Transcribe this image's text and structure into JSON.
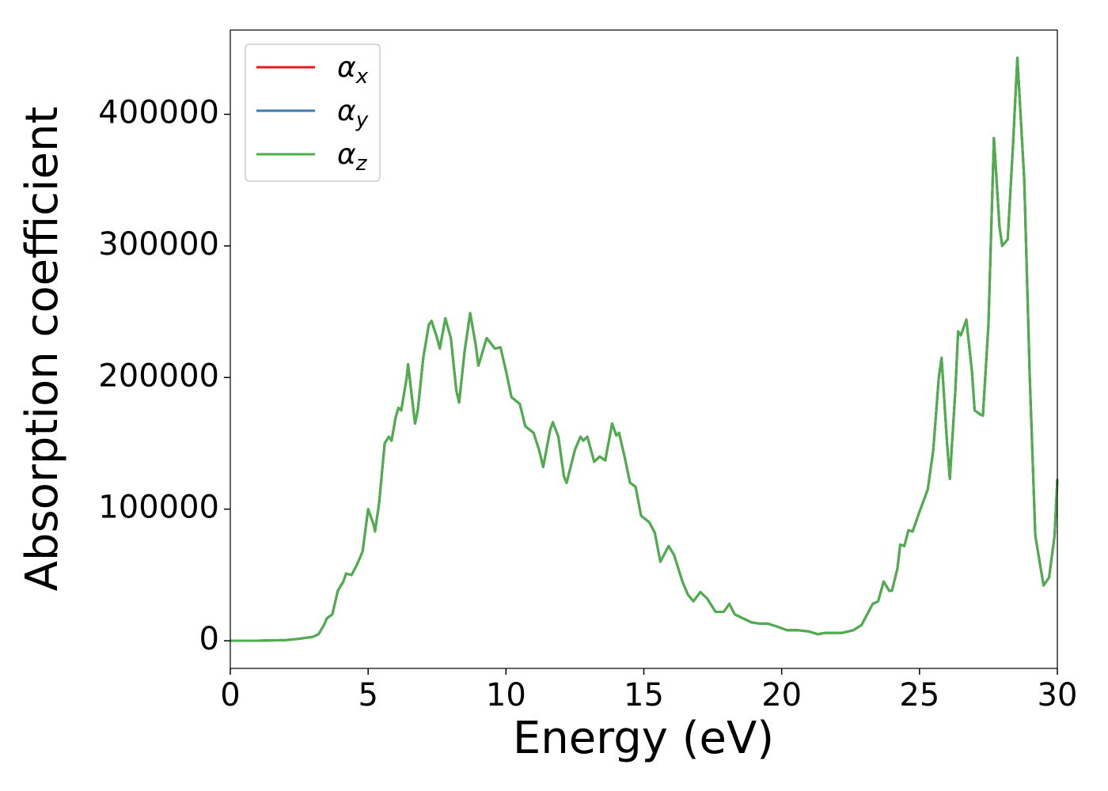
{
  "chart_data": {
    "type": "line",
    "xlabel": "Energy (eV)",
    "ylabel": "Absorption coefficient",
    "xlim": [
      0,
      30
    ],
    "xticks": [
      0,
      5,
      10,
      15,
      20,
      25,
      30
    ],
    "ylim": [
      -21000,
      464000
    ],
    "yticks": [
      0,
      100000,
      200000,
      300000,
      400000
    ],
    "grid": false,
    "legend": "upper left",
    "x": [
      0,
      1,
      2,
      2.5,
      3,
      3.2,
      3.4,
      3.5,
      3.7,
      3.9,
      4.1,
      4.2,
      4.4,
      4.6,
      4.8,
      5.0,
      5.2,
      5.25,
      5.4,
      5.6,
      5.75,
      5.85,
      6.0,
      6.1,
      6.2,
      6.4,
      6.45,
      6.7,
      6.8,
      7.0,
      7.2,
      7.3,
      7.5,
      7.6,
      7.8,
      8.0,
      8.2,
      8.3,
      8.5,
      8.7,
      8.9,
      9.0,
      9.3,
      9.6,
      9.8,
      10.0,
      10.2,
      10.5,
      10.7,
      11.0,
      11.2,
      11.35,
      11.6,
      11.7,
      11.9,
      12.1,
      12.2,
      12.5,
      12.7,
      12.8,
      12.95,
      13.2,
      13.4,
      13.6,
      13.85,
      14.0,
      14.1,
      14.3,
      14.5,
      14.7,
      14.9,
      15.2,
      15.4,
      15.6,
      15.9,
      16.1,
      16.4,
      16.6,
      16.8,
      17.05,
      17.3,
      17.6,
      17.9,
      18.1,
      18.3,
      18.6,
      18.9,
      19.2,
      19.5,
      19.8,
      20.2,
      20.6,
      21.0,
      21.3,
      21.6,
      22.2,
      22.6,
      22.9,
      23.1,
      23.3,
      23.5,
      23.7,
      23.9,
      24.0,
      24.2,
      24.3,
      24.45,
      24.6,
      24.75,
      25.0,
      25.3,
      25.5,
      25.7,
      25.8,
      26.0,
      26.1,
      26.3,
      26.4,
      26.5,
      26.7,
      26.9,
      27.0,
      27.2,
      27.3,
      27.5,
      27.7,
      27.9,
      28.0,
      28.2,
      28.4,
      28.55,
      28.8,
      29.0,
      29.2,
      29.5,
      29.7,
      29.9,
      30.0
    ],
    "series": [
      {
        "name": "αx",
        "color": "#e41a1c",
        "values": [
          0,
          0,
          500,
          1500,
          3000,
          5000,
          12000,
          17000,
          20000,
          38000,
          45000,
          51000,
          50000,
          58000,
          68000,
          100000,
          88000,
          83000,
          105000,
          150000,
          155000,
          152000,
          170000,
          177000,
          175000,
          200000,
          210000,
          165000,
          175000,
          215000,
          240000,
          243000,
          230000,
          222000,
          245000,
          230000,
          190000,
          181000,
          220000,
          249000,
          225000,
          209000,
          230000,
          222000,
          223000,
          205000,
          185000,
          180000,
          163000,
          158000,
          145000,
          132000,
          160000,
          166000,
          155000,
          125000,
          120000,
          145000,
          155000,
          152000,
          155000,
          136000,
          140000,
          137000,
          165000,
          156000,
          158000,
          140000,
          120000,
          117000,
          95000,
          90000,
          82000,
          60000,
          72000,
          65000,
          45000,
          35000,
          30000,
          37000,
          32000,
          22000,
          22000,
          28000,
          20000,
          17000,
          14000,
          13000,
          13000,
          11000,
          8000,
          8000,
          7000,
          5000,
          6000,
          6000,
          8000,
          12000,
          20000,
          28000,
          30000,
          45000,
          38000,
          38000,
          55000,
          73000,
          72000,
          84000,
          83000,
          98000,
          115000,
          145000,
          200000,
          215000,
          150000,
          123000,
          190000,
          235000,
          232000,
          244000,
          205000,
          175000,
          172000,
          171000,
          240000,
          382000,
          315000,
          300000,
          305000,
          380000,
          443000,
          350000,
          200000,
          80000,
          42000,
          48000,
          80000,
          123000
        ]
      },
      {
        "name": "αy",
        "color": "#377eb8",
        "values": [
          0,
          0,
          500,
          1500,
          3000,
          5000,
          12000,
          17000,
          20000,
          38000,
          45000,
          51000,
          50000,
          58000,
          68000,
          100000,
          88000,
          83000,
          105000,
          150000,
          155000,
          152000,
          170000,
          177000,
          175000,
          200000,
          210000,
          165000,
          175000,
          215000,
          240000,
          243000,
          230000,
          222000,
          245000,
          230000,
          190000,
          181000,
          220000,
          249000,
          225000,
          209000,
          230000,
          222000,
          223000,
          205000,
          185000,
          180000,
          163000,
          158000,
          145000,
          132000,
          160000,
          166000,
          155000,
          125000,
          120000,
          145000,
          155000,
          152000,
          155000,
          136000,
          140000,
          137000,
          165000,
          156000,
          158000,
          140000,
          120000,
          117000,
          95000,
          90000,
          82000,
          60000,
          72000,
          65000,
          45000,
          35000,
          30000,
          37000,
          32000,
          22000,
          22000,
          28000,
          20000,
          17000,
          14000,
          13000,
          13000,
          11000,
          8000,
          8000,
          7000,
          5000,
          6000,
          6000,
          8000,
          12000,
          20000,
          28000,
          30000,
          45000,
          38000,
          38000,
          55000,
          73000,
          72000,
          84000,
          83000,
          98000,
          115000,
          145000,
          200000,
          215000,
          150000,
          123000,
          190000,
          235000,
          232000,
          244000,
          205000,
          175000,
          172000,
          171000,
          240000,
          382000,
          315000,
          300000,
          305000,
          380000,
          443000,
          350000,
          200000,
          80000,
          42000,
          48000,
          80000,
          123000
        ]
      },
      {
        "name": "αz",
        "color": "#4daf4a",
        "values": [
          0,
          0,
          500,
          1500,
          3000,
          5000,
          12000,
          17000,
          20000,
          38000,
          45000,
          51000,
          50000,
          58000,
          68000,
          100000,
          88000,
          83000,
          105000,
          150000,
          155000,
          152000,
          170000,
          177000,
          175000,
          200000,
          210000,
          165000,
          175000,
          215000,
          240000,
          243000,
          230000,
          222000,
          245000,
          230000,
          190000,
          181000,
          220000,
          249000,
          225000,
          209000,
          230000,
          222000,
          223000,
          205000,
          185000,
          180000,
          163000,
          158000,
          145000,
          132000,
          160000,
          166000,
          155000,
          125000,
          120000,
          145000,
          155000,
          152000,
          155000,
          136000,
          140000,
          137000,
          165000,
          156000,
          158000,
          140000,
          120000,
          117000,
          95000,
          90000,
          82000,
          60000,
          72000,
          65000,
          45000,
          35000,
          30000,
          37000,
          32000,
          22000,
          22000,
          28000,
          20000,
          17000,
          14000,
          13000,
          13000,
          11000,
          8000,
          8000,
          7000,
          5000,
          6000,
          6000,
          8000,
          12000,
          20000,
          28000,
          30000,
          45000,
          38000,
          38000,
          55000,
          73000,
          72000,
          84000,
          83000,
          98000,
          115000,
          145000,
          200000,
          215000,
          150000,
          123000,
          190000,
          235000,
          232000,
          244000,
          205000,
          175000,
          172000,
          171000,
          240000,
          382000,
          315000,
          300000,
          305000,
          380000,
          443000,
          350000,
          200000,
          80000,
          42000,
          48000,
          80000,
          123000
        ]
      }
    ]
  }
}
